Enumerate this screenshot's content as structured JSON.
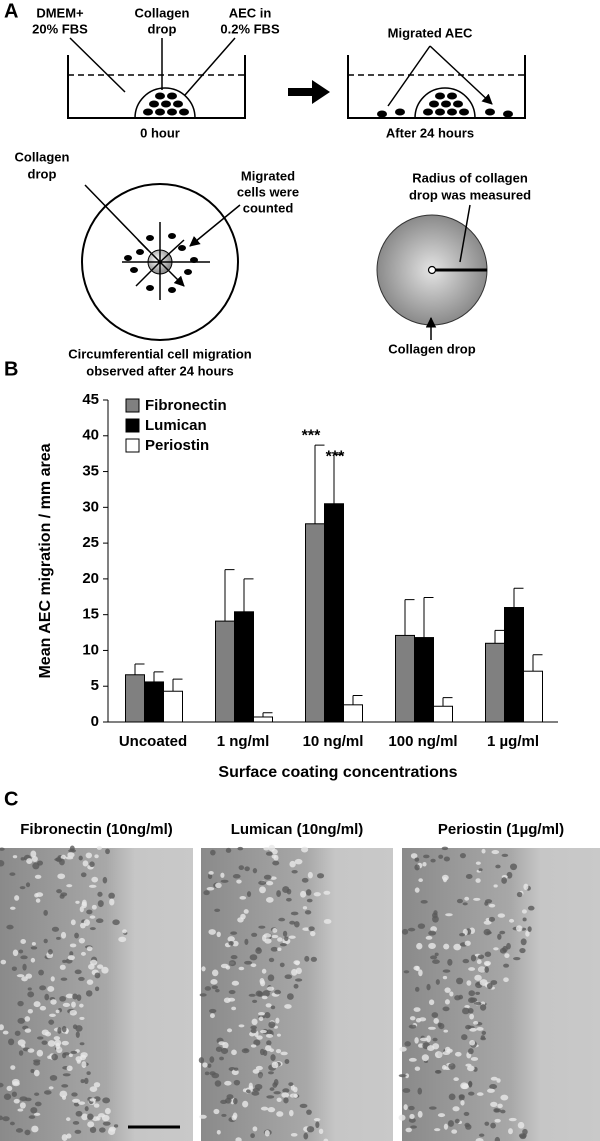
{
  "panel_a": {
    "label": "A",
    "medium": [
      "DMEM+",
      "20% FBS"
    ],
    "drop": [
      "Collagen",
      "drop"
    ],
    "cells": [
      "AEC in",
      "0.2% FBS"
    ],
    "start": "0 hour",
    "migrated": "Migrated AEC",
    "end": "After 24 hours",
    "drop2": [
      "Collagen",
      "drop"
    ],
    "counted": [
      "Migrated",
      "cells were",
      "counted"
    ],
    "circ": [
      "Circumferential cell migration",
      "observed after 24 hours"
    ],
    "radius": [
      "Radius of collagen",
      "drop was measured"
    ],
    "drop3": "Collagen drop"
  },
  "chart_data": {
    "type": "bar",
    "panel_label": "B",
    "y_label": "Mean AEC migration / mm area",
    "x_label": "Surface coating concentrations",
    "categories": [
      "Uncoated",
      "1 ng/ml",
      "10 ng/ml",
      "100 ng/ml",
      "1 µg/ml"
    ],
    "series": [
      {
        "name": "Fibronectin",
        "color": "#808080",
        "values": [
          6.6,
          14.1,
          27.7,
          12.1,
          11.0
        ],
        "errors": [
          1.5,
          7.2,
          11.0,
          5.0,
          1.8
        ],
        "annotations": [
          null,
          null,
          "***",
          null,
          null
        ]
      },
      {
        "name": "Lumican",
        "color": "#000000",
        "values": [
          5.6,
          15.4,
          30.5,
          11.8,
          16.0
        ],
        "errors": [
          1.4,
          4.6,
          6.9,
          5.6,
          2.7
        ],
        "annotations": [
          null,
          null,
          "***",
          null,
          null
        ]
      },
      {
        "name": "Periostin",
        "color": "#ffffff",
        "values": [
          4.3,
          0.7,
          2.4,
          2.2,
          7.1
        ],
        "errors": [
          1.7,
          0.6,
          1.3,
          1.2,
          2.3
        ]
      }
    ],
    "ylim": [
      0,
      45
    ],
    "yticks": [
      0,
      5,
      10,
      15,
      20,
      25,
      30,
      35,
      40,
      45
    ],
    "legend": "upper-left"
  },
  "panel_c": {
    "label": "C",
    "images": [
      "Fibronectin (10ng/ml)",
      "Lumican (10ng/ml)",
      "Periostin (1µg/ml)"
    ]
  }
}
